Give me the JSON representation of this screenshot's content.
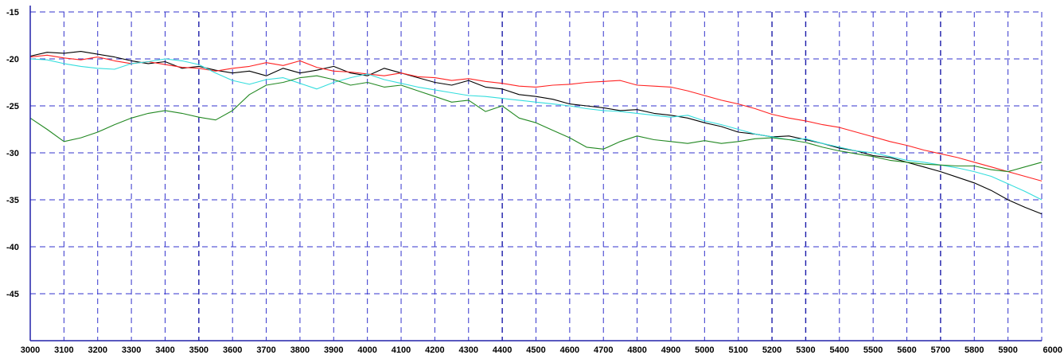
{
  "chart_data": {
    "type": "line",
    "title": "",
    "xlabel": "",
    "ylabel": "",
    "xlim": [
      3000,
      6000
    ],
    "ylim": [
      -50,
      -15
    ],
    "grid": true,
    "x_ticks": [
      3000,
      3100,
      3200,
      3300,
      3400,
      3500,
      3600,
      3700,
      3800,
      3900,
      4000,
      4100,
      4200,
      4300,
      4400,
      4500,
      4600,
      4700,
      4800,
      4900,
      5000,
      5100,
      5200,
      5300,
      5400,
      5500,
      5600,
      5700,
      5800,
      5900,
      6000
    ],
    "y_ticks": [
      -15,
      -20,
      -25,
      -30,
      -35,
      -40,
      -45
    ],
    "x_tick_labels": [
      "3000",
      "3100",
      "3200",
      "3300",
      "3400",
      "3500",
      "3600",
      "3700",
      "3800",
      "3900",
      "4000",
      "4100",
      "4200",
      "4300",
      "4400",
      "4500",
      "4600",
      "4700",
      "4800",
      "4900",
      "5000",
      "5100",
      "5200",
      "5300",
      "5400",
      "5500",
      "5600",
      "5700",
      "5800",
      "5900",
      "6000"
    ],
    "y_tick_labels": [
      "-15",
      "-20",
      "-25",
      "-30",
      "-35",
      "-40",
      "-45"
    ],
    "x": [
      3000,
      3050,
      3100,
      3150,
      3200,
      3250,
      3300,
      3350,
      3400,
      3450,
      3500,
      3550,
      3600,
      3650,
      3700,
      3750,
      3800,
      3850,
      3900,
      3950,
      4000,
      4050,
      4100,
      4150,
      4200,
      4250,
      4300,
      4350,
      4400,
      4450,
      4500,
      4550,
      4600,
      4650,
      4700,
      4750,
      4800,
      4850,
      4900,
      4950,
      5000,
      5050,
      5100,
      5150,
      5200,
      5250,
      5300,
      5350,
      5400,
      5450,
      5500,
      5550,
      5600,
      5650,
      5700,
      5750,
      5800,
      5850,
      5900,
      5950,
      6000
    ],
    "series": [
      {
        "color": "#000000",
        "values": [
          -19.7,
          -19.3,
          -19.4,
          -19.2,
          -19.5,
          -19.8,
          -20.2,
          -20.5,
          -20.3,
          -21.0,
          -20.8,
          -21.2,
          -21.5,
          -21.3,
          -21.8,
          -21.0,
          -21.5,
          -21.2,
          -20.8,
          -21.5,
          -21.8,
          -21.0,
          -21.5,
          -22.0,
          -22.5,
          -22.8,
          -22.3,
          -23.0,
          -23.2,
          -23.8,
          -24.0,
          -24.3,
          -24.8,
          -25.0,
          -25.2,
          -25.5,
          -25.4,
          -25.8,
          -26.0,
          -26.3,
          -26.8,
          -27.2,
          -27.8,
          -28.0,
          -28.3,
          -28.2,
          -28.6,
          -29.0,
          -29.5,
          -29.8,
          -30.3,
          -30.5,
          -31.0,
          -31.5,
          -32.0,
          -32.6,
          -33.2,
          -34.0,
          -35.0,
          -35.8,
          -36.5
        ]
      },
      {
        "color": "#ff2222",
        "values": [
          -19.8,
          -19.6,
          -19.9,
          -20.1,
          -19.8,
          -20.2,
          -20.5,
          -20.3,
          -20.6,
          -20.9,
          -21.0,
          -21.3,
          -21.0,
          -20.8,
          -20.4,
          -20.7,
          -20.2,
          -20.9,
          -21.3,
          -21.4,
          -21.6,
          -21.8,
          -21.5,
          -21.9,
          -22.0,
          -22.3,
          -22.1,
          -22.4,
          -22.6,
          -22.9,
          -23.0,
          -22.8,
          -22.7,
          -22.5,
          -22.4,
          -22.3,
          -22.8,
          -22.9,
          -23.0,
          -23.4,
          -23.9,
          -24.4,
          -24.8,
          -25.3,
          -25.9,
          -26.3,
          -26.6,
          -27.0,
          -27.3,
          -27.8,
          -28.3,
          -28.8,
          -29.2,
          -29.7,
          -30.1,
          -30.5,
          -31.0,
          -31.5,
          -32.0,
          -32.5,
          -33.0
        ]
      },
      {
        "color": "#33dddd",
        "values": [
          -20.0,
          -20.1,
          -20.5,
          -20.8,
          -21.0,
          -21.1,
          -20.5,
          -20.3,
          -20.0,
          -20.2,
          -20.6,
          -21.5,
          -22.3,
          -22.7,
          -22.2,
          -22.0,
          -22.6,
          -23.2,
          -22.5,
          -22.0,
          -21.6,
          -22.2,
          -22.6,
          -23.0,
          -23.3,
          -23.6,
          -23.9,
          -24.0,
          -24.2,
          -24.4,
          -24.6,
          -24.8,
          -25.0,
          -25.3,
          -25.5,
          -25.6,
          -25.8,
          -26.0,
          -26.2,
          -26.0,
          -26.6,
          -27.0,
          -27.5,
          -28.0,
          -28.3,
          -28.6,
          -28.5,
          -29.0,
          -29.4,
          -29.8,
          -30.0,
          -30.4,
          -30.8,
          -31.0,
          -31.3,
          -31.6,
          -32.0,
          -32.5,
          -33.3,
          -34.1,
          -35.0
        ]
      },
      {
        "color": "#228822",
        "values": [
          -26.3,
          -27.5,
          -28.8,
          -28.4,
          -27.8,
          -27.0,
          -26.3,
          -25.8,
          -25.5,
          -25.8,
          -26.2,
          -26.5,
          -25.5,
          -23.8,
          -22.8,
          -22.5,
          -22.0,
          -21.8,
          -22.2,
          -22.8,
          -22.5,
          -23.0,
          -22.8,
          -23.4,
          -24.0,
          -24.6,
          -24.4,
          -25.6,
          -25.0,
          -26.3,
          -26.8,
          -27.6,
          -28.4,
          -29.4,
          -29.6,
          -28.8,
          -28.2,
          -28.6,
          -28.8,
          -29.0,
          -28.7,
          -29.0,
          -28.8,
          -28.5,
          -28.4,
          -28.6,
          -28.9,
          -29.4,
          -29.8,
          -30.1,
          -30.4,
          -30.8,
          -31.0,
          -31.2,
          -31.3,
          -31.4,
          -31.4,
          -31.8,
          -32.0,
          -31.5,
          -31.0
        ]
      }
    ]
  }
}
